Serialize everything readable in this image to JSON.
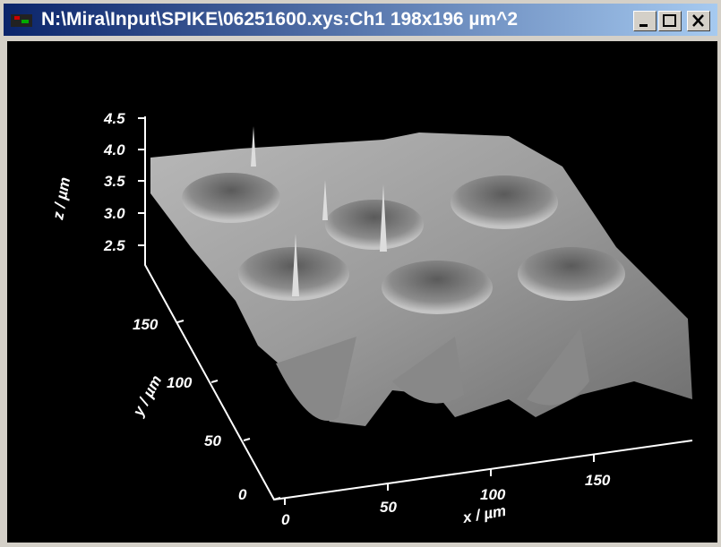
{
  "window": {
    "title": "N:\\Mira\\Input\\SPIKE\\06251600.xys:Ch1 198x196 µm^2"
  },
  "plot": {
    "z_axis": {
      "label": "z / µm",
      "ticks": [
        "4.5",
        "4.0",
        "3.5",
        "3.0",
        "2.5"
      ]
    },
    "y_axis": {
      "label": "y / µm",
      "ticks": [
        "150",
        "100",
        "50",
        "0"
      ]
    },
    "x_axis": {
      "label": "x / µm",
      "ticks": [
        "0",
        "50",
        "100",
        "150"
      ]
    }
  }
}
